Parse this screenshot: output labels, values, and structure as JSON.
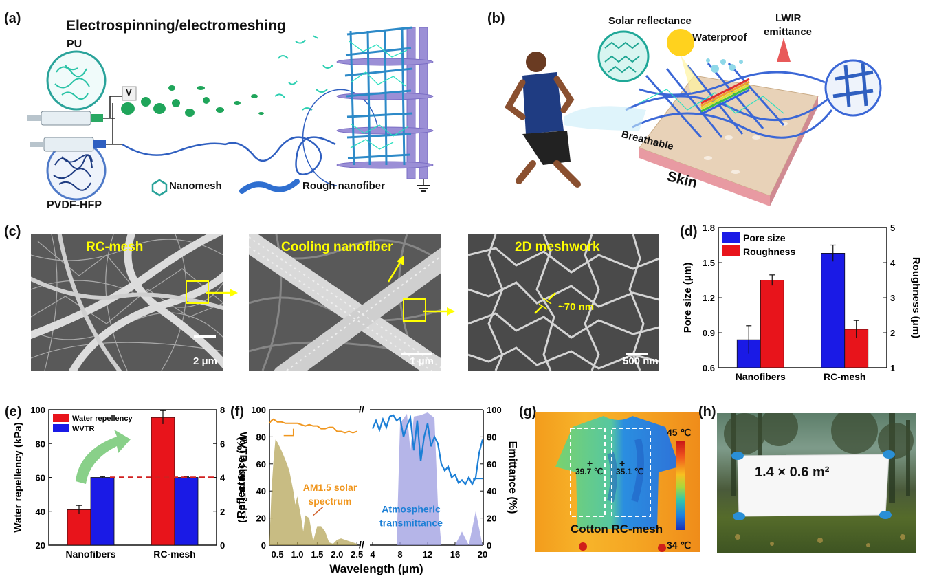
{
  "panel_labels": {
    "a": "(a)",
    "b": "(b)",
    "c": "(c)",
    "d": "(d)",
    "e": "(e)",
    "f": "(f)",
    "g": "(g)",
    "h": "(h)"
  },
  "panel_a": {
    "title": "Electrospinning/electromeshing",
    "pu": "PU",
    "pvdf": "PVDF-HFP",
    "voltage": "V",
    "legend_nanomesh": "Nanomesh",
    "legend_rough": "Rough nanofiber"
  },
  "panel_b": {
    "solar": "Solar reflectance",
    "waterproof": "Waterproof",
    "lwir_line1": "LWIR",
    "lwir_line2": "emittance",
    "breathable": "Breathable",
    "skin": "Skin"
  },
  "panel_c": {
    "img1_title": "RC-mesh",
    "img1_scale": "2 μm",
    "img2_title": "Cooling nanofiber",
    "img2_scale": "1 μm",
    "img3_title": "2D meshwork",
    "img3_scale": "500 nm",
    "img3_annot": "~70 nm"
  },
  "panel_g": {
    "temp1": "39.7 ℃",
    "temp2": "35.1 ℃",
    "max": "45 ℃",
    "min": "34 ℃",
    "caption": "Cotton RC-mesh"
  },
  "panel_h": {
    "label": "1.4 × 0.6 m²"
  },
  "colors": {
    "red": "#e8141b",
    "blue": "#1a1ae6",
    "orange": "#f0961e",
    "olive": "#b5a55a",
    "lavender": "#9c9ce0",
    "skyblue": "#1c7fd6"
  },
  "chart_data": [
    {
      "id": "d",
      "type": "bar",
      "categories": [
        "Nanofibers",
        "RC-mesh"
      ],
      "series": [
        {
          "name": "Pore size",
          "axis": "left",
          "values": [
            0.84,
            1.58
          ],
          "errors": [
            0.12,
            0.07
          ],
          "color": "#1a1ae6"
        },
        {
          "name": "Roughness",
          "axis": "right",
          "values": [
            3.5,
            2.1
          ],
          "errors": [
            0.15,
            0.25
          ],
          "color": "#e8141b"
        }
      ],
      "ylabel": "Pore size (μm)",
      "ylabel_right": "Roughness (μm)",
      "ylim": [
        0.6,
        1.8
      ],
      "ylim_right": [
        1,
        5
      ],
      "yticks": [
        "0.6",
        "0.9",
        "1.2",
        "1.5",
        "1.8"
      ],
      "yticks_right": [
        "1",
        "2",
        "3",
        "4",
        "5"
      ],
      "legend": "top-left"
    },
    {
      "id": "e",
      "type": "bar",
      "categories": [
        "Nanofibers",
        "RC-mesh"
      ],
      "series": [
        {
          "name": "Water repellency",
          "axis": "left",
          "values": [
            41,
            95.5
          ],
          "errors": [
            2.5,
            4
          ],
          "color": "#e8141b"
        },
        {
          "name": "WVTR",
          "axis": "right",
          "values": [
            4.0,
            4.0
          ],
          "errors": [
            0.05,
            0.05
          ],
          "color": "#1a1ae6"
        }
      ],
      "ylabel": "Water repellency (kPa)",
      "ylabel_right": "WVTR (kg m⁻² d⁻¹)",
      "ylim": [
        20,
        100
      ],
      "ylim_right": [
        0,
        8
      ],
      "yticks": [
        "20",
        "40",
        "60",
        "80",
        "100"
      ],
      "yticks_right": [
        "0",
        "2",
        "4",
        "6",
        "8"
      ],
      "reference_line_right": 4.0,
      "legend": "top-left"
    },
    {
      "id": "f",
      "type": "line",
      "xlabel": "Wavelength (μm)",
      "ylabel": "Reflectance (%)",
      "ylabel_right": "Emittance (%)",
      "ylim": [
        0,
        100
      ],
      "yticks": [
        "0",
        "20",
        "40",
        "60",
        "80",
        "100"
      ],
      "yticks_right": [
        "0",
        "20",
        "40",
        "60",
        "80",
        "100"
      ],
      "xticks_left": [
        "0.5",
        "1.0",
        "1.5",
        "2.0",
        "2.5"
      ],
      "xticks_right": [
        "4",
        "8",
        "12",
        "16",
        "20"
      ],
      "annotations": [
        "AM1.5 solar",
        "spectrum",
        "Atmospheric",
        "transmittance"
      ],
      "series": [
        {
          "name": "Reflectance",
          "x": [
            0.3,
            0.35,
            0.4,
            0.45,
            0.5,
            0.6,
            0.7,
            0.8,
            0.9,
            1.0,
            1.1,
            1.2,
            1.3,
            1.4,
            1.5,
            1.6,
            1.7,
            1.8,
            1.9,
            2.0,
            2.1,
            2.2,
            2.3,
            2.4,
            2.5
          ],
          "y": [
            90,
            92,
            93,
            92,
            91,
            91,
            90,
            90,
            90,
            90,
            89,
            88,
            89,
            88,
            88,
            86,
            86,
            87,
            87,
            84,
            84,
            83,
            84,
            83,
            84
          ]
        },
        {
          "name": "Emittance",
          "x": [
            4,
            4.5,
            5,
            5.5,
            6,
            6.5,
            7,
            7.5,
            8,
            8.5,
            9,
            9.5,
            10,
            10.5,
            11,
            11.5,
            12,
            12.5,
            13,
            13.5,
            14,
            14.5,
            15,
            15.5,
            16,
            16.5,
            17,
            17.5,
            18,
            18.5,
            19,
            19.5,
            20
          ],
          "y": [
            86,
            92,
            85,
            93,
            87,
            95,
            96,
            92,
            94,
            80,
            88,
            94,
            70,
            92,
            62,
            80,
            90,
            73,
            80,
            75,
            60,
            55,
            58,
            50,
            52,
            46,
            48,
            45,
            50,
            45,
            50,
            68,
            78
          ]
        },
        {
          "name": "AM1.5 solar spectrum",
          "x": [
            0.3,
            0.35,
            0.4,
            0.45,
            0.5,
            0.6,
            0.7,
            0.8,
            0.9,
            0.95,
            1.0,
            1.1,
            1.15,
            1.2,
            1.3,
            1.4,
            1.5,
            1.6,
            1.7,
            1.8,
            1.9,
            2.0,
            2.1,
            2.2,
            2.3,
            2.4,
            2.5
          ],
          "y": [
            2,
            40,
            62,
            78,
            76,
            70,
            63,
            55,
            40,
            30,
            36,
            20,
            10,
            22,
            20,
            3,
            14,
            14,
            10,
            2,
            1,
            4,
            5,
            4,
            3,
            2,
            1
          ]
        },
        {
          "name": "Atmospheric transmittance",
          "x": [
            4,
            5,
            6,
            7,
            7.5,
            8,
            9,
            9.5,
            10,
            11,
            12,
            13,
            13.5,
            14,
            15,
            16,
            17,
            18,
            19,
            20
          ],
          "y": [
            0,
            0,
            0,
            0,
            0,
            90,
            97,
            70,
            95,
            96,
            98,
            94,
            30,
            0,
            0,
            0,
            10,
            0,
            25,
            0
          ]
        }
      ]
    }
  ]
}
